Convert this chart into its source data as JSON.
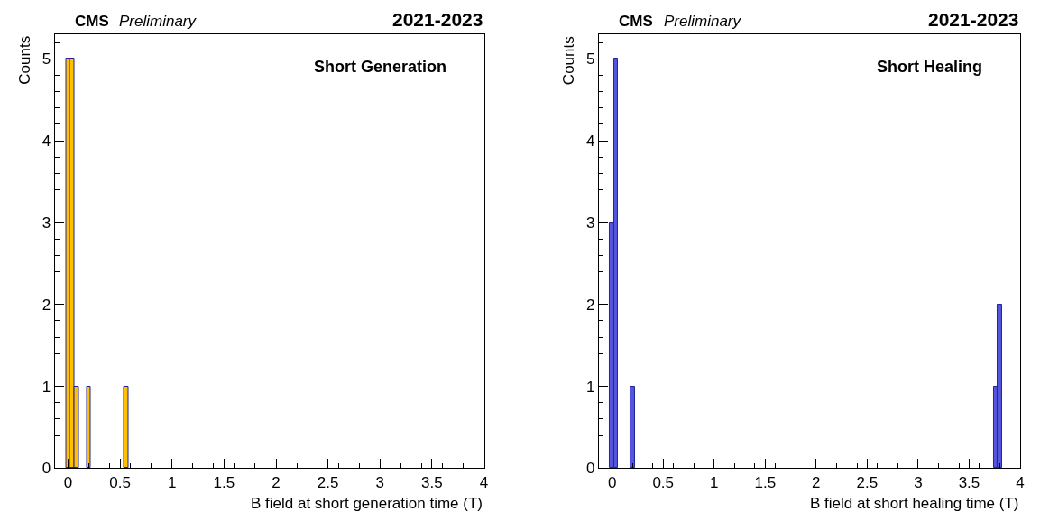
{
  "chart_data": [
    {
      "type": "histogram",
      "title": "CMS",
      "subtitle": "Preliminary",
      "annotations": [
        "2021-2023",
        "Short Generation"
      ],
      "xlabel": "B field at short generation time (T)",
      "ylabel": "Counts",
      "bins": [
        -0.02,
        0.02,
        0.06,
        0.1,
        0.14,
        0.18,
        0.22,
        0.26,
        0.3,
        0.34,
        0.38,
        0.42,
        0.46,
        0.5,
        0.54,
        0.58,
        0.62
      ],
      "values": [
        5,
        5,
        1,
        0,
        0,
        1,
        0,
        0,
        0,
        0,
        0,
        0,
        0,
        0,
        1,
        0
      ],
      "color": "#ffc000",
      "xlim": [
        -0.13,
        4
      ],
      "ylim": [
        0,
        5.3
      ],
      "xticks": [
        0,
        {
          "value": 0.5,
          "label": "0.5"
        },
        1,
        {
          "value": 1.5,
          "label": "1.5"
        },
        2,
        {
          "value": 2.5,
          "label": "2.5"
        },
        3,
        {
          "value": 3.5,
          "label": "3.5"
        },
        4
      ],
      "yticks": [
        0,
        1,
        2,
        3,
        4,
        5
      ]
    },
    {
      "type": "histogram",
      "title": "CMS",
      "subtitle": "Preliminary",
      "annotations": [
        "2021-2023",
        "Short Healing"
      ],
      "xlabel": "B field at short healing time (T)",
      "ylabel": "Counts",
      "bins": [
        -0.02,
        0.02,
        0.06,
        0.1,
        0.14,
        0.18,
        0.22,
        0.26,
        0.3,
        0.34,
        0.38,
        0.42,
        0.46,
        0.5,
        0.54,
        0.58,
        0.62,
        0.66,
        0.7,
        0.74,
        0.78,
        0.82,
        0.86,
        0.9,
        0.94,
        0.98,
        1.02,
        1.06,
        1.1,
        1.14,
        1.18,
        1.22,
        1.26,
        1.3,
        1.34,
        1.38,
        1.42,
        1.46,
        1.5,
        1.54,
        1.58,
        1.62,
        1.66,
        1.7,
        1.74,
        1.78,
        1.82,
        1.86,
        1.9,
        1.94,
        1.98,
        2.02,
        2.06,
        2.1,
        2.14,
        2.18,
        2.22,
        2.26,
        2.3,
        2.34,
        2.38,
        2.42,
        2.46,
        2.5,
        2.54,
        2.58,
        2.62,
        2.66,
        2.7,
        2.74,
        2.78,
        2.82,
        2.86,
        2.9,
        2.94,
        2.98,
        3.02,
        3.06,
        3.1,
        3.14,
        3.18,
        3.22,
        3.26,
        3.3,
        3.34,
        3.38,
        3.42,
        3.46,
        3.5,
        3.54,
        3.58,
        3.62,
        3.66,
        3.7,
        3.74,
        3.78,
        3.82
      ],
      "values": [
        3,
        5,
        0,
        0,
        0,
        1,
        0,
        0,
        0,
        0,
        0,
        0,
        0,
        0,
        0,
        0,
        0,
        0,
        0,
        0,
        0,
        0,
        0,
        0,
        0,
        0,
        0,
        0,
        0,
        0,
        0,
        0,
        0,
        0,
        0,
        0,
        0,
        0,
        0,
        0,
        0,
        0,
        0,
        0,
        0,
        0,
        0,
        0,
        0,
        0,
        0,
        0,
        0,
        0,
        0,
        0,
        0,
        0,
        0,
        0,
        0,
        0,
        0,
        0,
        0,
        0,
        0,
        0,
        0,
        0,
        0,
        0,
        0,
        0,
        0,
        0,
        0,
        0,
        0,
        0,
        0,
        0,
        0,
        0,
        0,
        0,
        0,
        0,
        0,
        0,
        0,
        0,
        0,
        0,
        1,
        2
      ],
      "color": "#5555dd",
      "xlim": [
        -0.13,
        4
      ],
      "ylim": [
        0,
        5.3
      ],
      "xticks": [
        0,
        {
          "value": 0.5,
          "label": "0.5"
        },
        1,
        {
          "value": 1.5,
          "label": "1.5"
        },
        2,
        {
          "value": 2.5,
          "label": "2.5"
        },
        3,
        {
          "value": 3.5,
          "label": "3.5"
        },
        4
      ],
      "yticks": [
        0,
        1,
        2,
        3,
        4,
        5
      ]
    }
  ]
}
